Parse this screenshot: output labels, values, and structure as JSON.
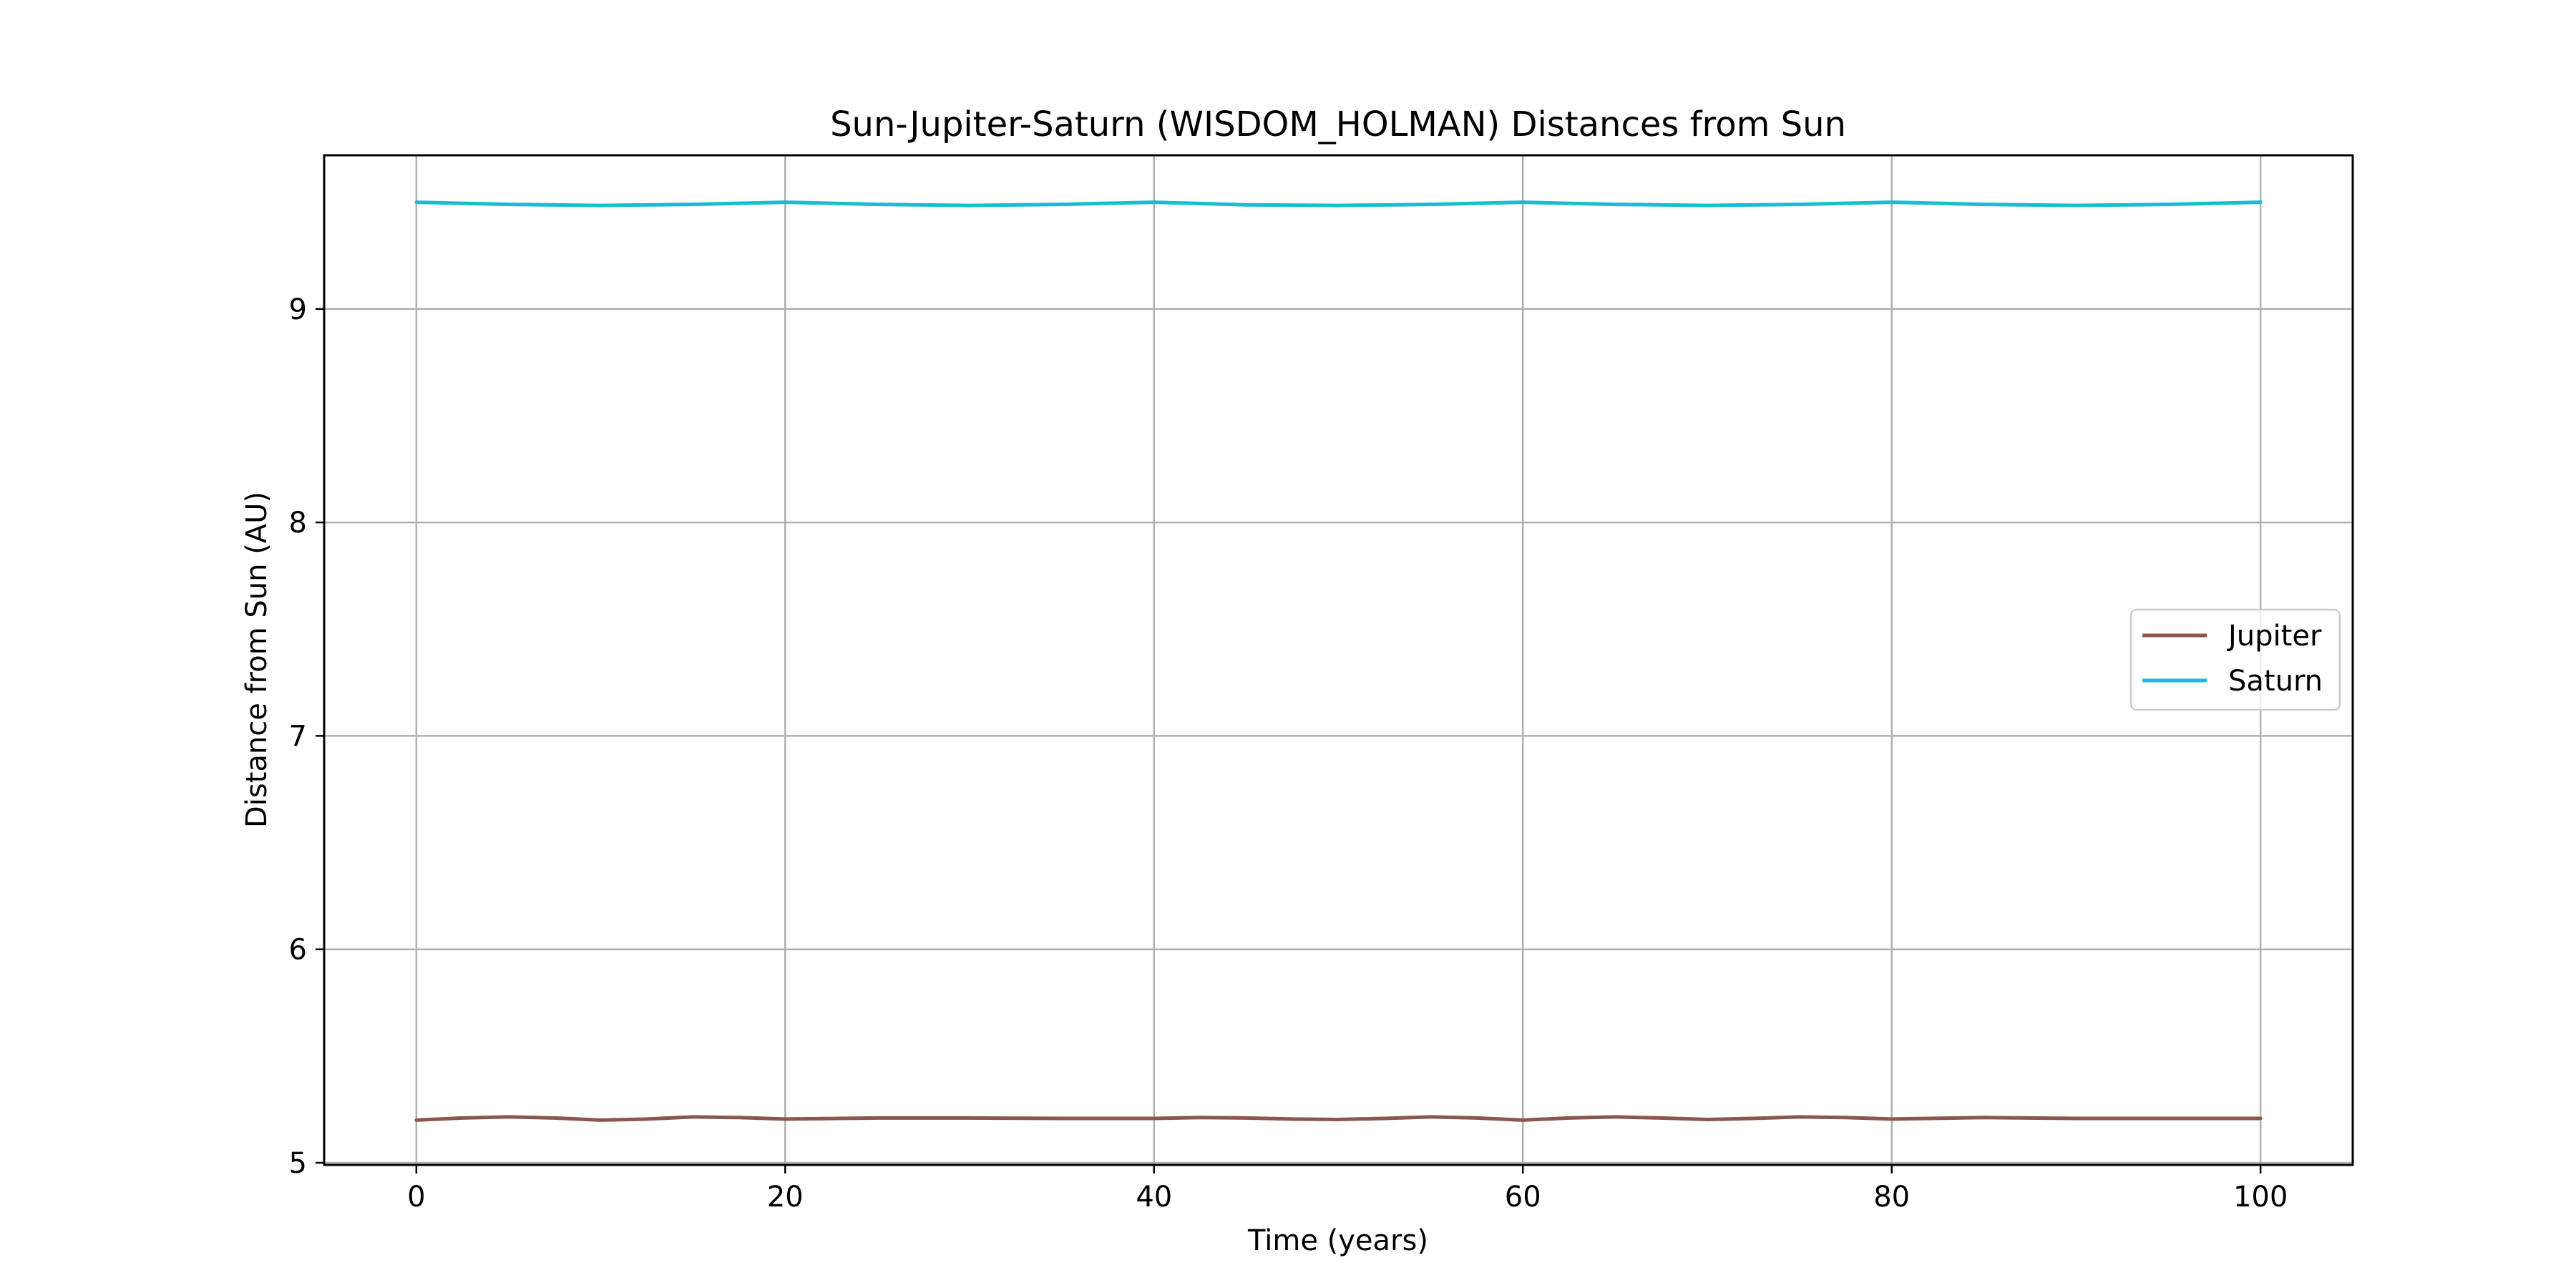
{
  "chart_data": {
    "type": "line",
    "title": "Sun-Jupiter-Saturn (WISDOM_HOLMAN) Distances from Sun",
    "xlabel": "Time (years)",
    "ylabel": "Distance from Sun (AU)",
    "xlim": [
      -5,
      105
    ],
    "ylim": [
      4.99,
      9.72
    ],
    "xticks": [
      0,
      20,
      40,
      60,
      80,
      100
    ],
    "yticks": [
      5,
      6,
      7,
      8,
      9
    ],
    "grid": true,
    "legend_position": "center-right",
    "series": [
      {
        "name": "Jupiter",
        "color": "#8c564b",
        "x": [
          0,
          2.5,
          5,
          7.5,
          10,
          12.5,
          15,
          17.5,
          20,
          25,
          30,
          35,
          40,
          42.5,
          45,
          47.5,
          50,
          52.5,
          55,
          57.5,
          60,
          62.5,
          65,
          67.5,
          70,
          72.5,
          75,
          77.5,
          80,
          85,
          90,
          95,
          100
        ],
        "y": [
          5.2,
          5.21,
          5.215,
          5.21,
          5.2,
          5.205,
          5.215,
          5.212,
          5.205,
          5.21,
          5.21,
          5.208,
          5.208,
          5.212,
          5.21,
          5.205,
          5.203,
          5.208,
          5.215,
          5.21,
          5.2,
          5.21,
          5.215,
          5.21,
          5.203,
          5.208,
          5.215,
          5.212,
          5.205,
          5.212,
          5.208,
          5.208,
          5.208
        ]
      },
      {
        "name": "Saturn",
        "color": "#17becf",
        "x": [
          0,
          5,
          10,
          15,
          20,
          25,
          30,
          35,
          40,
          45,
          50,
          55,
          60,
          65,
          70,
          75,
          80,
          85,
          90,
          95,
          100
        ],
        "y": [
          9.5,
          9.49,
          9.485,
          9.49,
          9.5,
          9.49,
          9.485,
          9.49,
          9.5,
          9.488,
          9.485,
          9.49,
          9.5,
          9.49,
          9.485,
          9.49,
          9.5,
          9.49,
          9.485,
          9.49,
          9.5
        ]
      }
    ]
  }
}
